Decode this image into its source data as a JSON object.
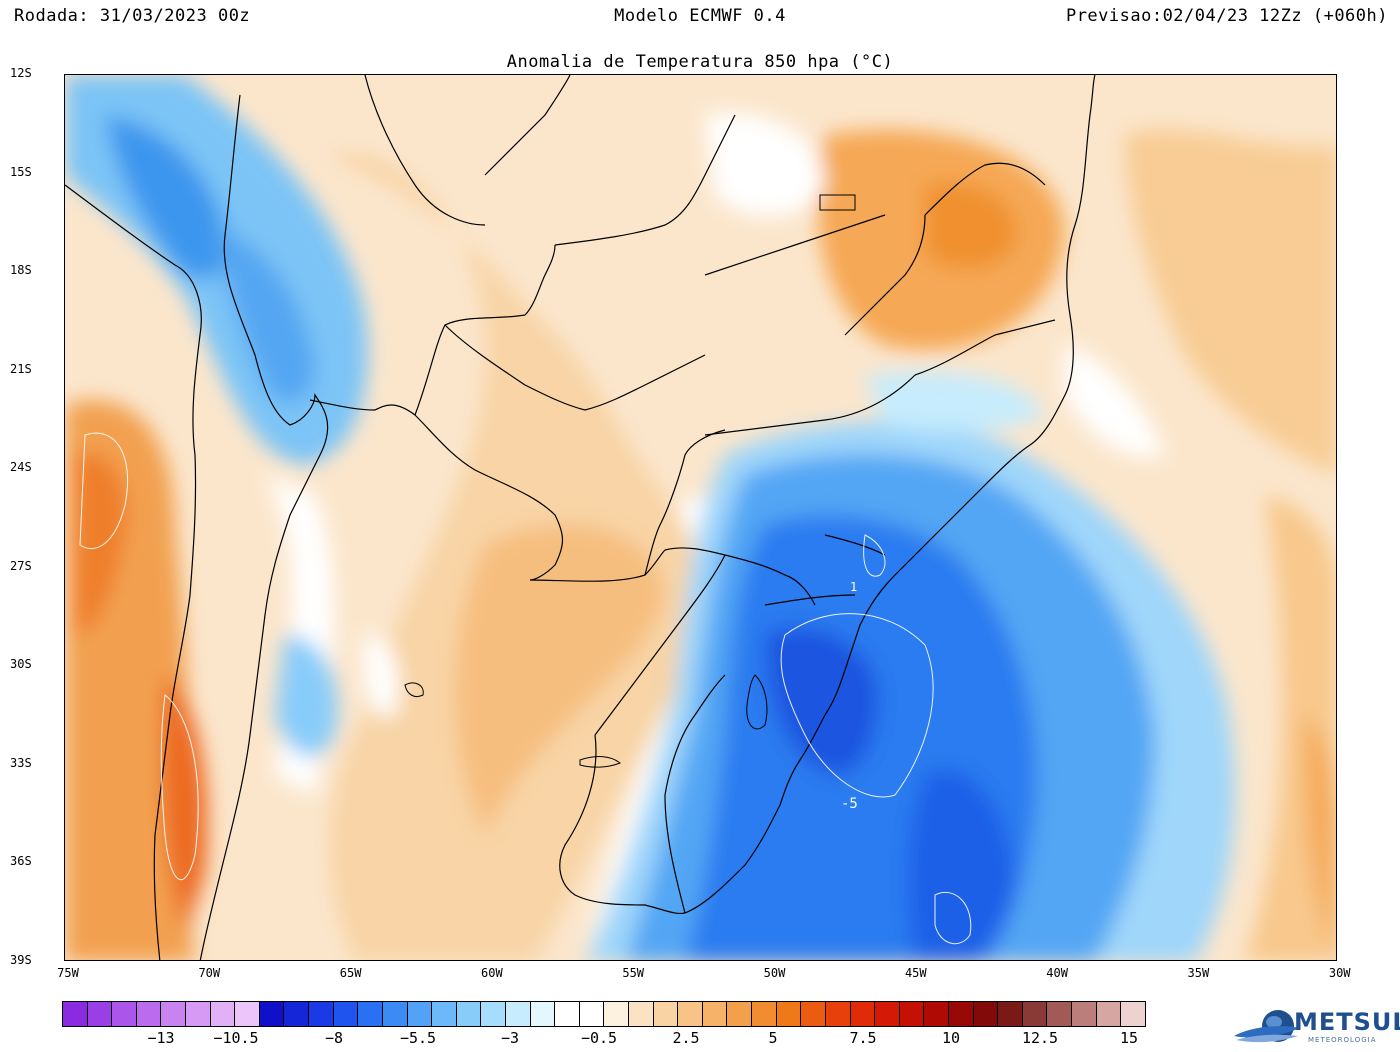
{
  "header": {
    "run_date": "Rodada: 31/03/2023 00z",
    "model": "Modelo ECMWF 0.4",
    "forecast": "Previsao:02/04/23 12Zz (+060h)"
  },
  "map": {
    "title": "Anomalia de Temperatura 850 hpa (°C)",
    "lat_labels": [
      "12S",
      "15S",
      "18S",
      "21S",
      "24S",
      "27S",
      "30S",
      "33S",
      "36S",
      "39S"
    ],
    "lon_labels": [
      "75W",
      "70W",
      "65W",
      "60W",
      "55W",
      "50W",
      "45W",
      "40W",
      "35W",
      "30W"
    ],
    "contour_labels": [
      "1",
      "-5"
    ]
  },
  "colorbar": {
    "colors": [
      "#8a2be2",
      "#9a3ee6",
      "#ab55ea",
      "#bb6cee",
      "#c983f1",
      "#d79af4",
      "#e2b0f7",
      "#ecc6fa",
      "#1010c8",
      "#1525d8",
      "#1a3ae6",
      "#1f55ee",
      "#2a70f2",
      "#3c8af4",
      "#52a2f6",
      "#6cb8f8",
      "#88ccfa",
      "#a6ddfc",
      "#c6ecfd",
      "#e4f6fe",
      "#ffffff",
      "#ffffff",
      "#fdf1df",
      "#fbe2c2",
      "#f9d3a4",
      "#f7c386",
      "#f5b268",
      "#f3a04c",
      "#f18c31",
      "#ef7818",
      "#ec5c10",
      "#e8400b",
      "#e02a08",
      "#d41a06",
      "#c41005",
      "#b00a04",
      "#980804",
      "#820a08",
      "#7a1a16",
      "#8a3a36",
      "#a25a56",
      "#bc7e7a",
      "#d6a6a2",
      "#eed2cf"
    ],
    "labels": [
      "−13",
      "−10.5",
      "−8",
      "−5.5",
      "−3",
      "−0.5",
      "2.5",
      "5",
      "7.5",
      "10",
      "12.5",
      "15"
    ]
  },
  "logo": {
    "text": "METSUL",
    "subtext": "METEOROLOGIA"
  }
}
